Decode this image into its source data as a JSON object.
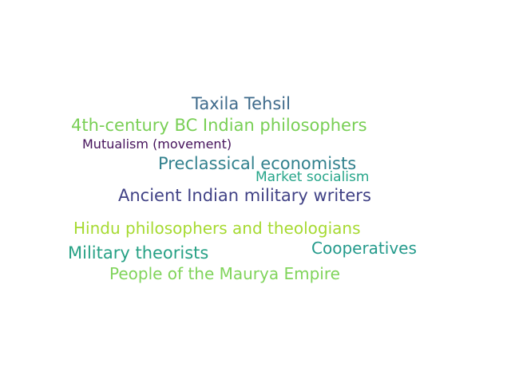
{
  "words": [
    {
      "text": "Taxila Tehsil",
      "color": "#3e6a8b"
    },
    {
      "text": "4th-century BC Indian philosophers",
      "color": "#79cf55"
    },
    {
      "text": "Mutualism (movement)",
      "color": "#45125b"
    },
    {
      "text": "Preclassical economists",
      "color": "#31808d"
    },
    {
      "text": "Market socialism",
      "color": "#26a589"
    },
    {
      "text": "Ancient Indian military writers",
      "color": "#414286"
    },
    {
      "text": "Hindu philosophers and theologians",
      "color": "#a6da31"
    },
    {
      "text": "Cooperatives",
      "color": "#239a8b"
    },
    {
      "text": "Military theorists",
      "color": "#27a185"
    },
    {
      "text": "People of the Maurya Empire",
      "color": "#80d45b"
    }
  ]
}
